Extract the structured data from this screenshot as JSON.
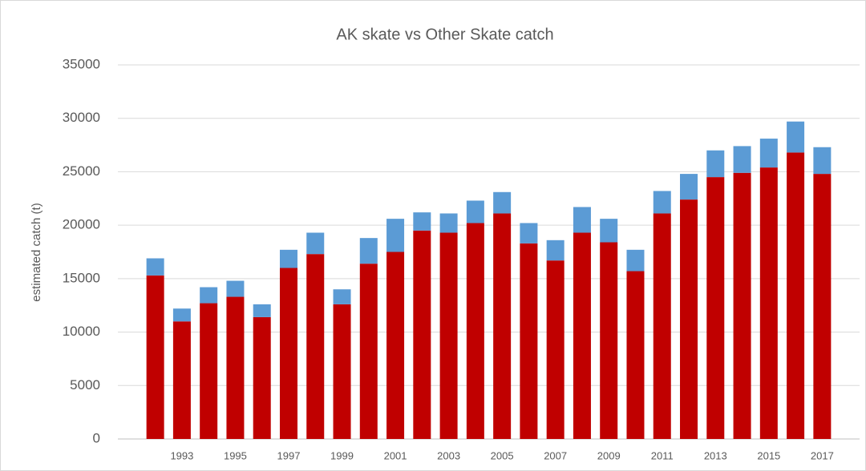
{
  "chart_data": {
    "type": "stacked_bar",
    "title": "AK skate vs Other Skate catch",
    "y_label": "estimated catch (t)",
    "categories": [
      null,
      "1993",
      null,
      "1995",
      null,
      "1997",
      null,
      "1999",
      null,
      "2001",
      null,
      "2003",
      null,
      "2005",
      null,
      "2007",
      null,
      "2009",
      null,
      "2011",
      null,
      "2013",
      null,
      "2015",
      null,
      "2017"
    ],
    "series": [
      {
        "color": "#c00000",
        "values": [
          15300,
          11000,
          12700,
          13300,
          11400,
          16000,
          17300,
          12600,
          16400,
          17500,
          19500,
          19300,
          20200,
          21100,
          18300,
          16700,
          19300,
          18400,
          15700,
          21100,
          22400,
          24500,
          24900,
          25400,
          26800,
          24800
        ]
      },
      {
        "color": "#5b9bd5",
        "values": [
          1600,
          1200,
          1500,
          1500,
          1200,
          1700,
          2000,
          1400,
          2400,
          3100,
          1700,
          1800,
          2100,
          2000,
          1900,
          1900,
          2400,
          2200,
          2000,
          2100,
          2400,
          2500,
          2500,
          2700,
          2900,
          2500
        ]
      }
    ],
    "ylim": [
      0,
      35000
    ],
    "yticks": [
      0,
      5000,
      10000,
      15000,
      20000,
      25000,
      30000,
      35000
    ],
    "grid": true
  }
}
